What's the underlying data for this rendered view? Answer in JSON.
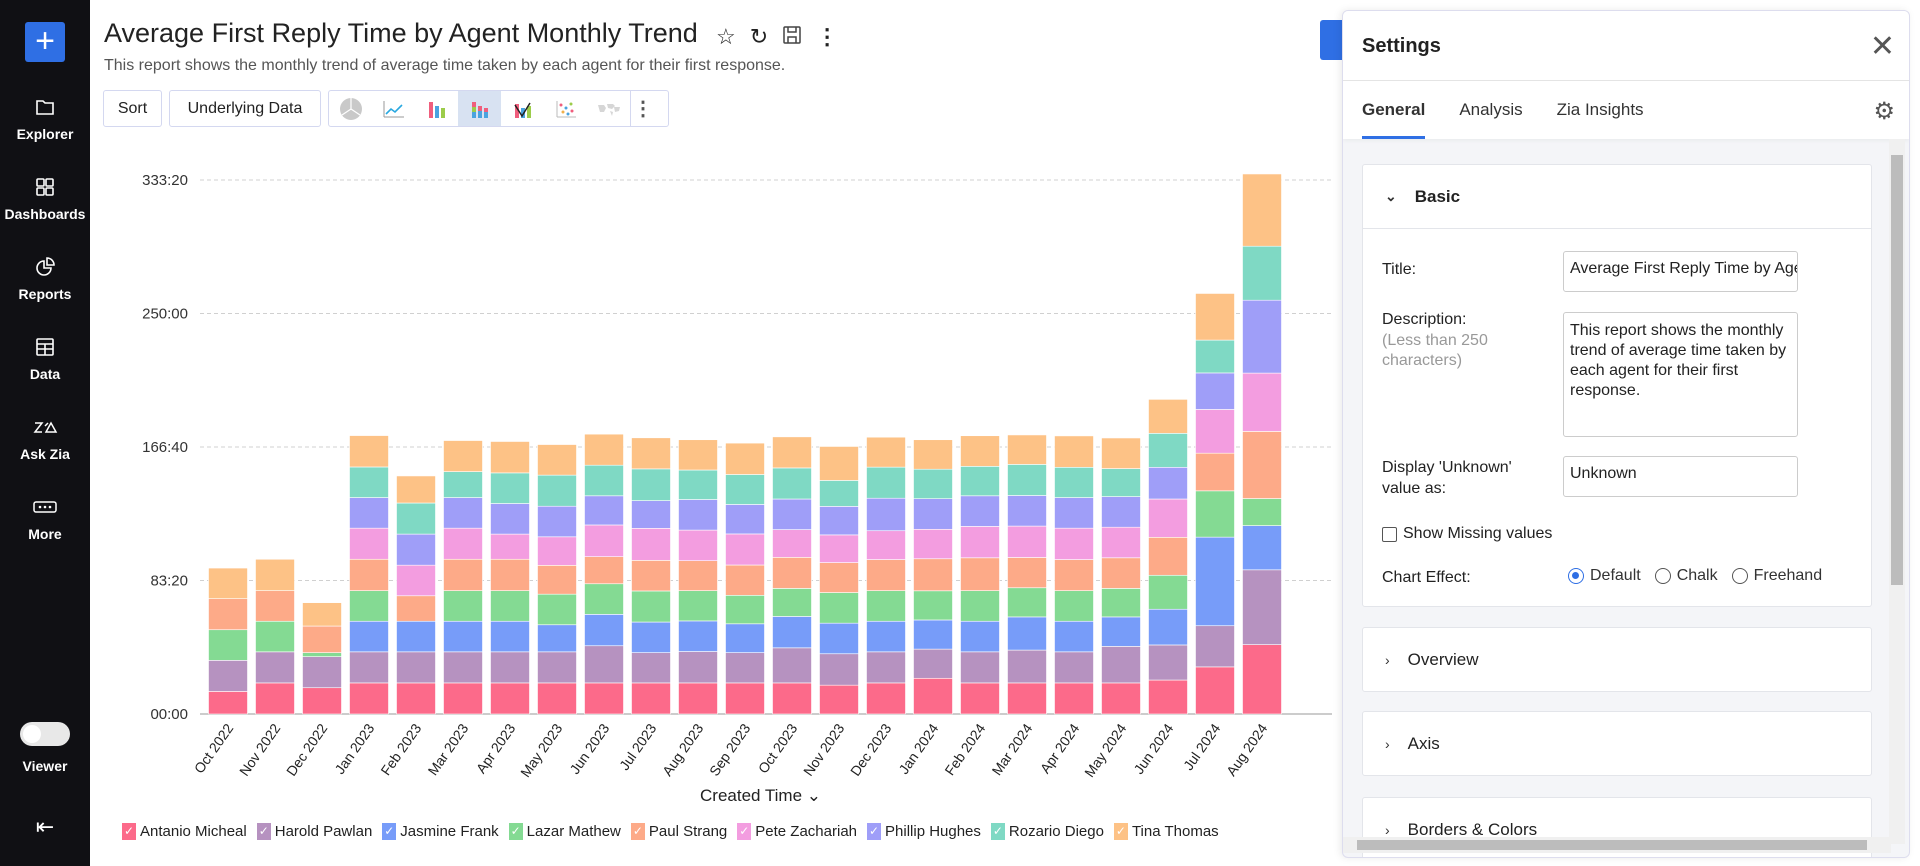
{
  "sidebar": {
    "items": [
      {
        "label": "Explorer",
        "icon": "folder-icon"
      },
      {
        "label": "Dashboards",
        "icon": "grid-icon"
      },
      {
        "label": "Reports",
        "icon": "pie-icon"
      },
      {
        "label": "Data",
        "icon": "table-icon"
      },
      {
        "label": "Ask Zia",
        "icon": "zia-icon"
      },
      {
        "label": "More",
        "icon": "more-icon"
      }
    ],
    "toggle_label": "Viewer"
  },
  "header": {
    "title": "Average First Reply Time by Agent Monthly Trend",
    "description": "This report shows the monthly trend of average time taken by each agent for their first response."
  },
  "toolbar": {
    "sort": "Sort",
    "underlying": "Underlying Data",
    "chart_types": [
      "pie",
      "line",
      "bar",
      "stacked-bar",
      "combo",
      "scatter",
      "map"
    ],
    "selected": "stacked-bar"
  },
  "settings": {
    "title": "Settings",
    "tabs": [
      "General",
      "Analysis",
      "Zia Insights"
    ],
    "active_tab": "General",
    "basic": {
      "header": "Basic",
      "title_label": "Title:",
      "title_value": "Average First Reply Time by Agent Monthly Trend",
      "desc_label": "Description:",
      "desc_hint": "(Less than 250 characters)",
      "desc_value": "This report shows the monthly trend of average time taken by each agent for their first response.",
      "unknown_label": "Display 'Unknown' value as:",
      "unknown_value": "Unknown",
      "missing_label": "Show Missing values",
      "missing_checked": false,
      "effect_label": "Chart Effect:",
      "effects": [
        "Default",
        "Chalk",
        "Freehand"
      ],
      "effect_selected": "Default"
    },
    "sections": [
      "Overview",
      "Axis",
      "Borders & Colors"
    ]
  },
  "chart_data": {
    "type": "bar",
    "stacked": true,
    "xlabel": "Created Time",
    "ylabel": "",
    "ylim": [
      0,
      333.33
    ],
    "yticks": [
      0,
      83.33,
      166.67,
      250,
      333.33
    ],
    "ytick_labels": [
      "00:00",
      "83:20",
      "166:40",
      "250:00",
      "333:20"
    ],
    "grid": true,
    "legend": "bottom",
    "categories": [
      "Oct 2022",
      "Nov 2022",
      "Dec 2022",
      "Jan 2023",
      "Feb 2023",
      "Mar 2023",
      "Apr 2023",
      "May 2023",
      "Jun 2023",
      "Jul 2023",
      "Aug 2023",
      "Sep 2023",
      "Oct 2023",
      "Nov 2023",
      "Dec 2023",
      "Jan 2024",
      "Feb 2024",
      "Mar 2024",
      "Apr 2024",
      "May 2024",
      "Jun 2024",
      "Jul 2024",
      "Aug 2024"
    ],
    "series": [
      {
        "name": "Antanio Micheal",
        "color": "#fc6a8a",
        "values": [
          14.1,
          19.4,
          16.4,
          19.4,
          19.4,
          19.4,
          19.4,
          19.4,
          19.4,
          19.4,
          19.4,
          19.4,
          19.4,
          18.0,
          19.4,
          22.3,
          19.4,
          19.4,
          19.4,
          19.4,
          21.2,
          29.4,
          43.3
        ]
      },
      {
        "name": "Harold Pawlan",
        "color": "#b692c0",
        "values": [
          19.4,
          19.4,
          19.4,
          19.4,
          19.4,
          19.4,
          19.4,
          19.4,
          23.2,
          18.9,
          19.6,
          18.9,
          21.9,
          19.6,
          19.4,
          18.2,
          19.4,
          20.5,
          19.4,
          22.8,
          21.9,
          25.7,
          46.7
        ]
      },
      {
        "name": "Jasmine Frank",
        "color": "#779cf9",
        "values": [
          0,
          0,
          0,
          19.1,
          19.1,
          19.1,
          19.1,
          16.9,
          19.6,
          19.1,
          19.1,
          18.0,
          19.6,
          19.1,
          19.1,
          18.2,
          19.1,
          20.7,
          19.1,
          18.4,
          22.3,
          55.3,
          27.6
        ]
      },
      {
        "name": "Lazar Mathew",
        "color": "#84da93",
        "values": [
          19.1,
          19.1,
          2.5,
          19.1,
          0,
          19.1,
          19.1,
          19.1,
          19.1,
          19.4,
          18.9,
          17.8,
          17.5,
          19.1,
          19.1,
          18.2,
          19.1,
          18.2,
          19.1,
          17.8,
          21.2,
          28.9,
          16.9
        ]
      },
      {
        "name": "Paul Strang",
        "color": "#fdaa88",
        "values": [
          19.4,
          19.1,
          16.6,
          19.6,
          15.9,
          19.6,
          19.6,
          18.0,
          16.9,
          19.1,
          18.7,
          18.9,
          19.4,
          18.7,
          19.4,
          20.0,
          20.5,
          18.9,
          19.4,
          19.1,
          23.7,
          23.5,
          41.9
        ]
      },
      {
        "name": "Pete Zachariah",
        "color": "#f39de0",
        "values": [
          0,
          0,
          0,
          19.4,
          19.1,
          19.4,
          15.7,
          17.8,
          19.8,
          20.0,
          19.1,
          19.4,
          17.3,
          17.3,
          18.0,
          18.4,
          19.6,
          19.6,
          19.6,
          19.1,
          23.9,
          27.3,
          36.4
        ]
      },
      {
        "name": "Phillip Hughes",
        "color": "#9f9ef8",
        "values": [
          0,
          0,
          0,
          19.1,
          19.4,
          19.1,
          19.1,
          19.1,
          18.2,
          17.3,
          19.1,
          18.4,
          19.1,
          17.8,
          20.3,
          19.1,
          19.1,
          19.1,
          19.1,
          19.1,
          19.8,
          22.8,
          45.5
        ]
      },
      {
        "name": "Rozario Diego",
        "color": "#7fd9c4",
        "values": [
          0,
          0,
          0,
          19.1,
          19.4,
          16.2,
          19.1,
          19.4,
          19.1,
          19.8,
          18.4,
          18.7,
          19.4,
          16.2,
          19.4,
          18.4,
          18.4,
          19.4,
          18.9,
          17.5,
          21.2,
          20.5,
          33.7
        ]
      },
      {
        "name": "Tina Thomas",
        "color": "#fdc286",
        "values": [
          19.1,
          19.6,
          14.6,
          19.6,
          16.9,
          19.4,
          19.6,
          19.1,
          19.4,
          19.4,
          18.9,
          19.6,
          19.4,
          21.2,
          18.7,
          18.4,
          19.1,
          18.4,
          19.6,
          19.1,
          21.2,
          29.1,
          45.1
        ]
      }
    ]
  }
}
